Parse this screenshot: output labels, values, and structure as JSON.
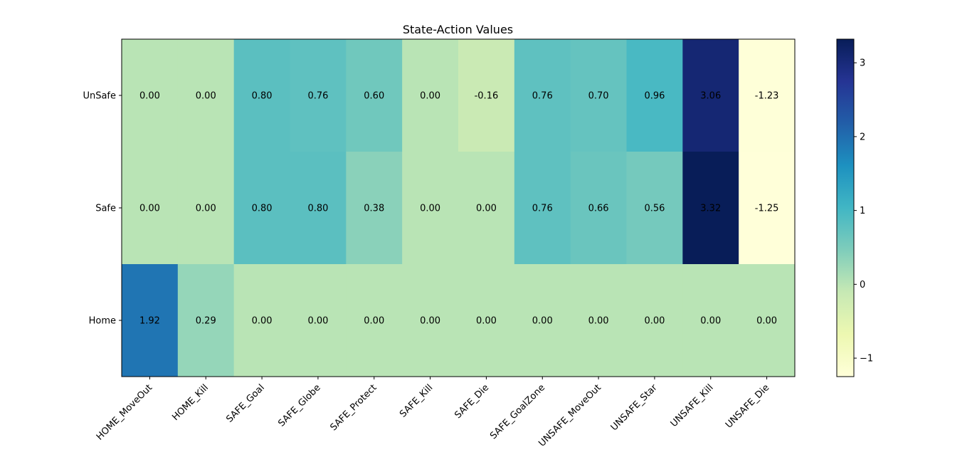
{
  "chart_data": {
    "type": "heatmap",
    "title": "State-Action Values",
    "xlabel": "",
    "ylabel": "",
    "rows": [
      "UnSafe",
      "Safe",
      "Home"
    ],
    "columns": [
      "HOME_MoveOut",
      "HOME_Kill",
      "SAFE_Goal",
      "SAFE_Globe",
      "SAFE_Protect",
      "SAFE_Kill",
      "SAFE_Die",
      "SAFE_GoalZone",
      "UNSAFE_MoveOut",
      "UNSAFE_Star",
      "UNSAFE_Kill",
      "UNSAFE_Die"
    ],
    "values": [
      [
        0.0,
        0.0,
        0.8,
        0.76,
        0.6,
        0.0,
        -0.16,
        0.76,
        0.7,
        0.96,
        3.06,
        -1.23
      ],
      [
        0.0,
        0.0,
        0.8,
        0.8,
        0.38,
        0.0,
        0.0,
        0.76,
        0.66,
        0.56,
        3.32,
        -1.25
      ],
      [
        1.92,
        0.29,
        0.0,
        0.0,
        0.0,
        0.0,
        0.0,
        0.0,
        0.0,
        0.0,
        0.0,
        0.0
      ]
    ],
    "labels": [
      [
        "0.00",
        "0.00",
        "0.80",
        "0.76",
        "0.60",
        "0.00",
        "-0.16",
        "0.76",
        "0.70",
        "0.96",
        "3.06",
        "-1.23"
      ],
      [
        "0.00",
        "0.00",
        "0.80",
        "0.80",
        "0.38",
        "0.00",
        "0.00",
        "0.76",
        "0.66",
        "0.56",
        "3.32",
        "-1.25"
      ],
      [
        "1.92",
        "0.29",
        "0.00",
        "0.00",
        "0.00",
        "0.00",
        "0.00",
        "0.00",
        "0.00",
        "0.00",
        "0.00",
        "0.00"
      ]
    ],
    "colormap": "YlGnBu",
    "vmin": -1.25,
    "vmax": 3.32,
    "colorbar_ticks": [
      -1,
      0,
      1,
      2,
      3
    ],
    "colorbar_tick_labels": [
      "−1",
      "0",
      "1",
      "2",
      "3"
    ],
    "grid": false
  }
}
